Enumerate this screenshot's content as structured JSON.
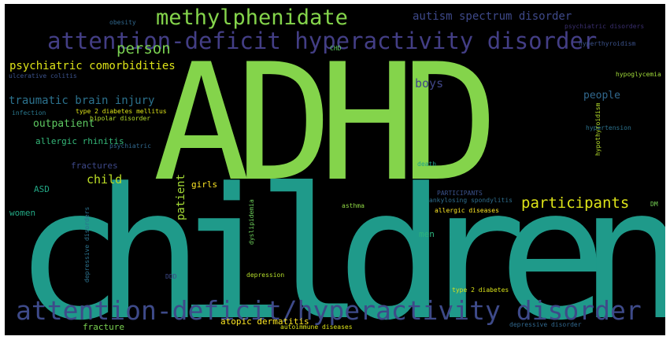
{
  "words": [
    {
      "text": "ADHD",
      "color": "#84d44b"
    },
    {
      "text": "children",
      "color": "#1f9a8a"
    },
    {
      "text": "attention-deficit/hyperactivity disorder",
      "color": "#3e4a89"
    },
    {
      "text": "attention-deficit hyperactivity disorder",
      "color": "#433e85"
    },
    {
      "text": "methylphenidate",
      "color": "#84d44b"
    },
    {
      "text": "autism spectrum disorder",
      "color": "#3e4989"
    },
    {
      "text": "psychiatric disorders",
      "color": "#3a2f70"
    },
    {
      "text": "obesity",
      "color": "#31688e"
    },
    {
      "text": "person",
      "color": "#7ad151"
    },
    {
      "text": "CHD",
      "color": "#5ec962"
    },
    {
      "text": "hyperthyroidism",
      "color": "#3b528b"
    },
    {
      "text": "psychiatric comorbidities",
      "color": "#dde318"
    },
    {
      "text": "ulcerative colitis",
      "color": "#3b528b"
    },
    {
      "text": "hypoglycemia",
      "color": "#a0da39"
    },
    {
      "text": "boys",
      "color": "#404688"
    },
    {
      "text": "traumatic brain injury",
      "color": "#2c728e"
    },
    {
      "text": "people",
      "color": "#31688e"
    },
    {
      "text": "infection",
      "color": "#2a788e"
    },
    {
      "text": "type 2 diabetes mellitus",
      "color": "#dde318"
    },
    {
      "text": "bipolar disorder",
      "color": "#b5de2b"
    },
    {
      "text": "outpatient",
      "color": "#5ec962"
    },
    {
      "text": "hypertension",
      "color": "#2c728e"
    },
    {
      "text": "hypothyroidism",
      "color": "#b5de2b"
    },
    {
      "text": "allergic rhinitis",
      "color": "#35b779"
    },
    {
      "text": "psychiatric",
      "color": "#31688e"
    },
    {
      "text": "fractures",
      "color": "#3e4989"
    },
    {
      "text": "death",
      "color": "#1fa088"
    },
    {
      "text": "child",
      "color": "#bddf26"
    },
    {
      "text": "girls",
      "color": "#fde725"
    },
    {
      "text": "patient",
      "color": "#a5db36"
    },
    {
      "text": "ASD",
      "color": "#22a785"
    },
    {
      "text": "PARTICIPANTS",
      "color": "#3b528b"
    },
    {
      "text": "ankylosing spondylitis",
      "color": "#2e6e8e"
    },
    {
      "text": "participants",
      "color": "#dde318"
    },
    {
      "text": "asthma",
      "color": "#8fd744"
    },
    {
      "text": "DM",
      "color": "#75d054"
    },
    {
      "text": "women",
      "color": "#22a884"
    },
    {
      "text": "allergic diseases",
      "color": "#fde725"
    },
    {
      "text": "depressive disorders",
      "color": "#2c728e"
    },
    {
      "text": "dyslipidemia",
      "color": "#6ccd5a"
    },
    {
      "text": "men",
      "color": "#2db27d"
    },
    {
      "text": "DDD",
      "color": "#3e4989"
    },
    {
      "text": "depression",
      "color": "#b5de2b"
    },
    {
      "text": "type 2 diabetes",
      "color": "#d8e219"
    },
    {
      "text": "atopic dermatitis",
      "color": "#fde725"
    },
    {
      "text": "fracture",
      "color": "#7ad151"
    },
    {
      "text": "autoimmune diseases",
      "color": "#dde318"
    },
    {
      "text": "depressive disorder",
      "color": "#31688e"
    }
  ]
}
